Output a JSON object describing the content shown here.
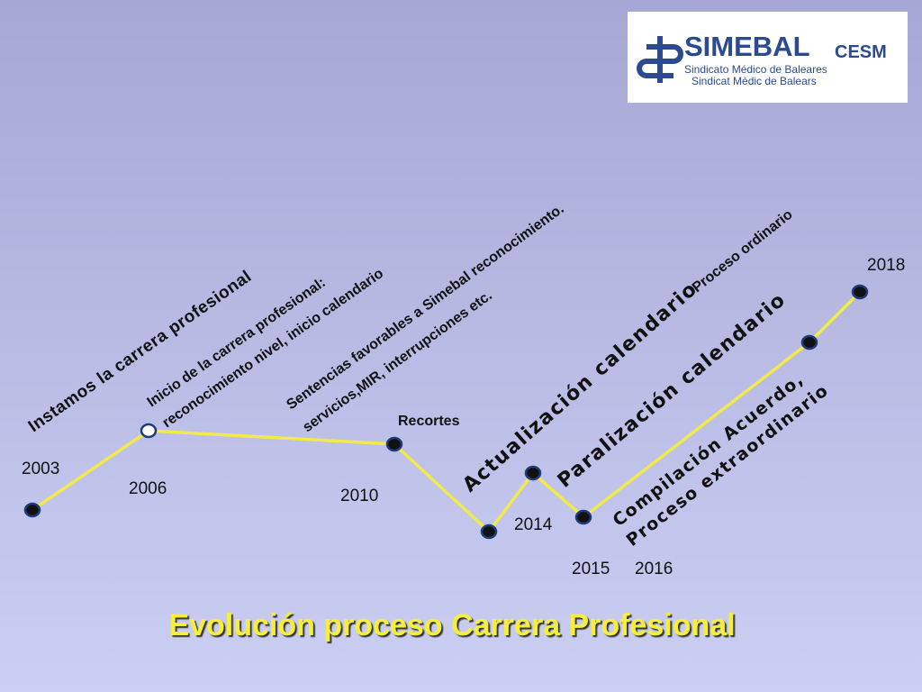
{
  "logo": {
    "name": "SIMEBAL",
    "suffix": "CESM",
    "line1": "Sindicato Médico de Baleares",
    "line2": "Sindicat Mèdic de Balears"
  },
  "years": [
    "2003",
    "2006",
    "2010",
    "2014",
    "2015",
    "2016",
    "2018"
  ],
  "annotations": {
    "instamos": "Instamos la carrera profesional",
    "inicio": [
      "Inicio de la carrera profesional:",
      "reconocimiento nivel, inicio calendario"
    ],
    "sentencias": [
      "Sentencias  favorables a Simebal reconocimiento.",
      "servicios,MIR, interrupciones etc."
    ],
    "recortes": "Recortes",
    "actualizacion": "Actualización calendario",
    "ordinario": "Proceso ordinario",
    "paralizacion": "Paralización calendario",
    "compilacion": [
      "Compilación Acuerdo,",
      "Proceso extraordinario"
    ]
  },
  "title": "Evolución proceso Carrera Profesional"
}
